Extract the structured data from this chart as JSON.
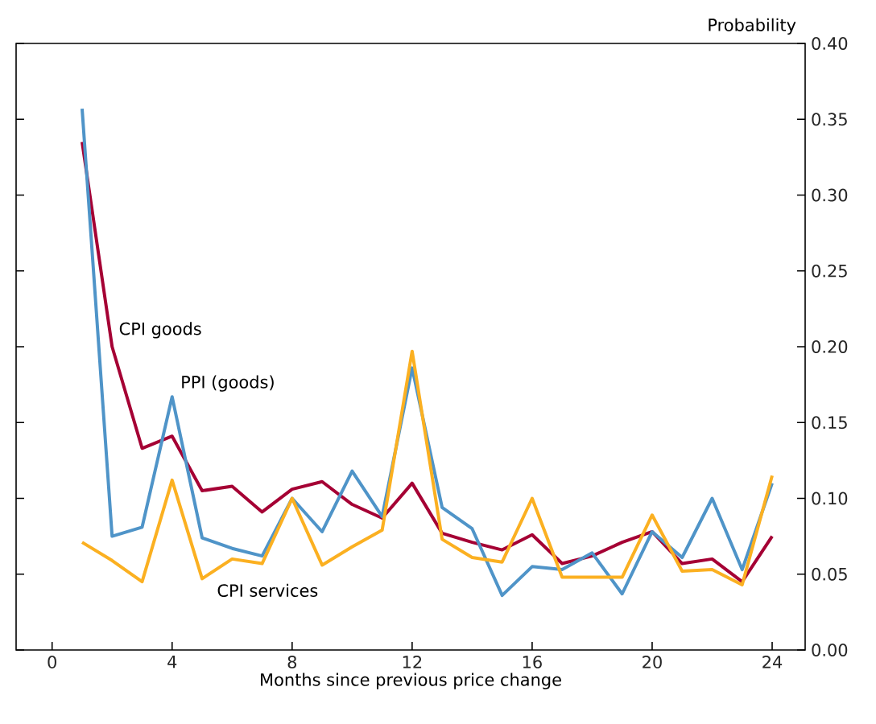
{
  "chart_data": {
    "type": "line",
    "xlabel": "Months since previous price change",
    "ylabel": "Probability",
    "x": [
      1,
      2,
      3,
      4,
      5,
      6,
      7,
      8,
      9,
      10,
      11,
      12,
      13,
      14,
      15,
      16,
      17,
      18,
      19,
      20,
      21,
      22,
      23,
      24
    ],
    "xlim": [
      -1.2,
      25.1
    ],
    "xticks": [
      0,
      4,
      8,
      12,
      16,
      20,
      24
    ],
    "ylim": [
      0,
      0.4
    ],
    "yticks": [
      {
        "value": 0,
        "label": "0.00"
      },
      {
        "value": 0.05,
        "label": "0.05"
      },
      {
        "value": 0.1,
        "label": "0.10"
      },
      {
        "value": 0.15,
        "label": "0.15"
      },
      {
        "value": 0.2,
        "label": "0.20"
      },
      {
        "value": 0.25,
        "label": "0.25"
      },
      {
        "value": 0.3,
        "label": "0.30"
      },
      {
        "value": 0.35,
        "label": "0.35"
      },
      {
        "value": 0.4,
        "label": "0.40"
      }
    ],
    "grid": false,
    "legend": false,
    "marker": "none",
    "line_style": "solid",
    "series": [
      {
        "name": "CPI goods",
        "color": "#a50034",
        "values": [
          0.335,
          0.2,
          0.133,
          0.141,
          0.105,
          0.108,
          0.091,
          0.106,
          0.111,
          0.096,
          0.087,
          0.11,
          0.077,
          0.071,
          0.066,
          0.076,
          0.057,
          0.062,
          0.071,
          0.078,
          0.057,
          0.06,
          0.045,
          0.075
        ]
      },
      {
        "name": "PPI (goods)",
        "color": "#4f94c8",
        "values": [
          0.357,
          0.075,
          0.081,
          0.167,
          0.074,
          0.067,
          0.062,
          0.1,
          0.078,
          0.118,
          0.088,
          0.186,
          0.094,
          0.08,
          0.036,
          0.055,
          0.053,
          0.064,
          0.037,
          0.078,
          0.061,
          0.1,
          0.053,
          0.11
        ]
      },
      {
        "name": "CPI services",
        "color": "#fbb021",
        "values": [
          0.071,
          0.059,
          0.045,
          0.112,
          0.047,
          0.06,
          0.057,
          0.1,
          0.056,
          0.068,
          0.079,
          0.197,
          0.073,
          0.061,
          0.058,
          0.1,
          0.048,
          0.048,
          0.048,
          0.089,
          0.052,
          0.053,
          0.043,
          0.115
        ]
      }
    ]
  }
}
